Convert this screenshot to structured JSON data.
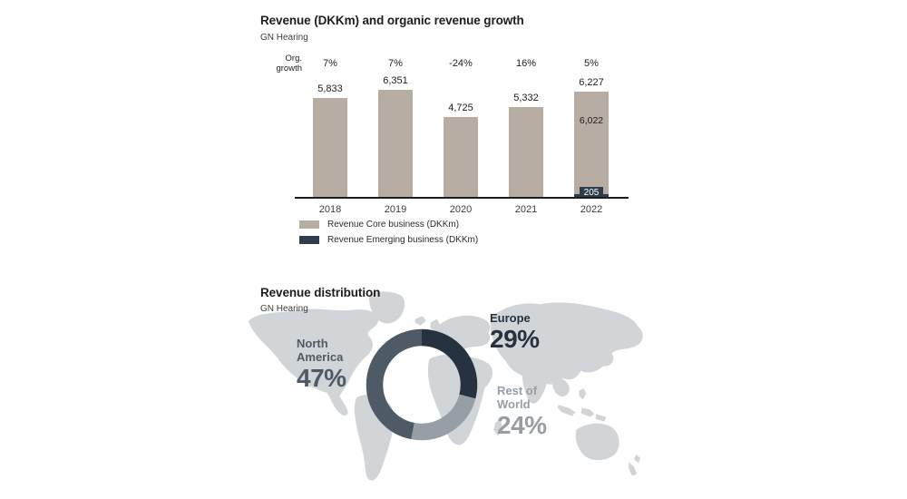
{
  "colors": {
    "map": "#d2d5d8",
    "axis": "#1d1d1b",
    "badge_text": "#ffffff"
  },
  "chart_data": [
    {
      "type": "bar",
      "title": "Revenue (DKKm) and organic revenue growth",
      "subtitle": "GN Hearing",
      "org_growth_header": "Org. growth",
      "categories": [
        "2018",
        "2019",
        "2020",
        "2021",
        "2022"
      ],
      "series": [
        {
          "name": "Revenue Core business (DKKm)",
          "color": "#b7ada2",
          "values": [
            5833,
            6351,
            4725,
            5332,
            6022
          ]
        },
        {
          "name": "Revenue Emerging business (DKKm)",
          "color": "#2e3d4c",
          "values": [
            0,
            0,
            0,
            0,
            205
          ]
        }
      ],
      "totals": [
        5833,
        6351,
        4725,
        5332,
        6227
      ],
      "total_labels": [
        "5,833",
        "6,351",
        "4,725",
        "5,332",
        "6,227"
      ],
      "org_growth": [
        "7%",
        "7%",
        "-24%",
        "16%",
        "5%"
      ],
      "extra_labels": [
        {
          "text": "6,022",
          "category_index": 4,
          "placement": "inside-bar"
        },
        {
          "text": "205",
          "category_index": 4,
          "placement": "axis-badge"
        }
      ],
      "ylim": [
        0,
        6600
      ],
      "grid": false,
      "legend_position": "bottom-left"
    },
    {
      "type": "pie",
      "donut": true,
      "title": "Revenue distribution",
      "subtitle": "GN Hearing",
      "direction": "clockwise",
      "start_angle_deg": 0,
      "segments": [
        {
          "label": "Europe",
          "value": 29,
          "pct_label": "29%",
          "color": "#26323f"
        },
        {
          "label": "Rest of World",
          "value": 24,
          "pct_label": "24%",
          "color": "#969ea6"
        },
        {
          "label": "North America",
          "value": 47,
          "pct_label": "47%",
          "color": "#4e5a66"
        }
      ]
    }
  ]
}
